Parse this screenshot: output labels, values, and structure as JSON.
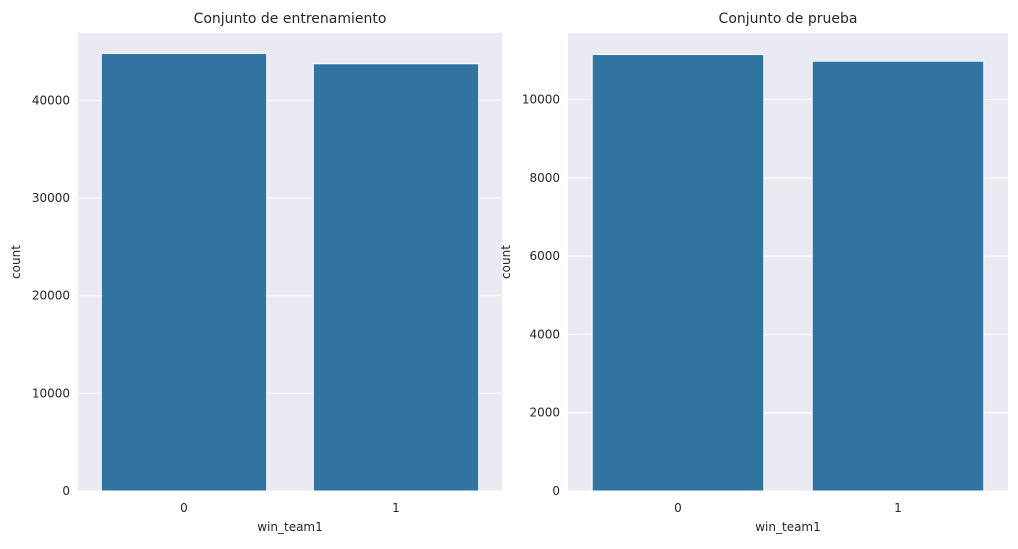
{
  "chart_data": [
    {
      "type": "bar",
      "title": "Conjunto de entrenamiento",
      "xlabel": "win_team1",
      "ylabel": "count",
      "categories": [
        "0",
        "1"
      ],
      "values": [
        44800,
        43750
      ],
      "ylim": [
        0,
        46900
      ],
      "yticks": [
        0,
        10000,
        20000,
        30000,
        40000
      ],
      "ytick_labels": [
        "0",
        "10000",
        "20000",
        "30000",
        "40000"
      ],
      "grid": true,
      "bar_color": "#3274a1",
      "background_color": "#eaeaf2",
      "grid_color": "#ffffff"
    },
    {
      "type": "bar",
      "title": "Conjunto de prueba",
      "xlabel": "win_team1",
      "ylabel": "count",
      "categories": [
        "0",
        "1"
      ],
      "values": [
        11150,
        10980
      ],
      "ylim": [
        0,
        11700
      ],
      "yticks": [
        0,
        2000,
        4000,
        6000,
        8000,
        10000
      ],
      "ytick_labels": [
        "0",
        "2000",
        "4000",
        "6000",
        "8000",
        "10000"
      ],
      "grid": true,
      "bar_color": "#3274a1",
      "background_color": "#eaeaf2",
      "grid_color": "#ffffff"
    }
  ]
}
